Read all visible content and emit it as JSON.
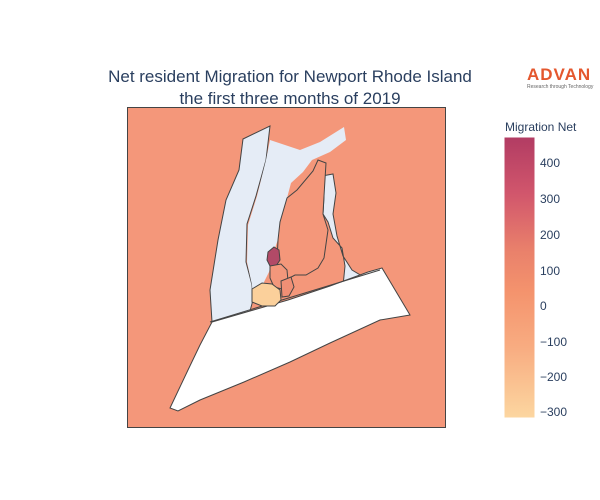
{
  "title": {
    "line1": "Net resident Migration for Newport Rhode Island",
    "line2": "the first three months of 2019"
  },
  "logo": {
    "word": "ADVAN",
    "tagline": "Research through Technology"
  },
  "colorbar": {
    "title": "Migration Net",
    "ticks": [
      "400",
      "300",
      "200",
      "100",
      "0",
      "−100",
      "−200",
      "−300"
    ],
    "scale_colors": [
      "#fcd19b",
      "#f9a273",
      "#f4936d",
      "#e57169",
      "#c7466a",
      "#b23c63"
    ]
  },
  "map_colors": {
    "background_region": "#f4977a",
    "no_data_land": "#e5ecf6",
    "water_white": "#ffffff",
    "outline": "#444444",
    "high_positive": "#b24a67",
    "low_negative": "#fbd09b",
    "near_zero": "#f3977b"
  }
}
